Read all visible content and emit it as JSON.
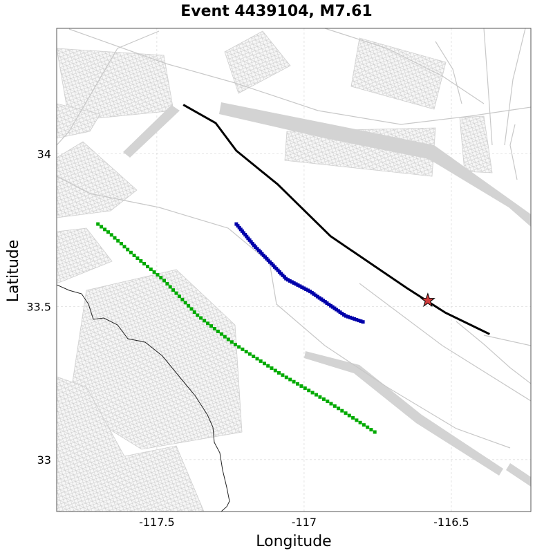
{
  "title": "Event 4439104, M7.61",
  "chart_data": {
    "type": "map",
    "xlabel": "Longitude",
    "ylabel": "Latitude",
    "xlim": [
      -117.84,
      -116.23
    ],
    "ylim": [
      32.83,
      34.41
    ],
    "x_ticks": [
      -117.5,
      -117,
      -116.5
    ],
    "y_ticks": [
      33,
      33.5,
      34
    ],
    "x_tick_labels": [
      "-117.5",
      "-117",
      "-116.5"
    ],
    "y_tick_labels": [
      "33",
      "33.5",
      "34"
    ],
    "grid": true,
    "series": [
      {
        "kind": "rupture-trace",
        "color": "#000000",
        "points": [
          [
            -117.41,
            34.16
          ],
          [
            -117.3,
            34.1
          ],
          [
            -117.23,
            34.01
          ],
          [
            -117.09,
            33.9
          ],
          [
            -116.91,
            33.73
          ],
          [
            -116.65,
            33.56
          ],
          [
            -116.52,
            33.48
          ],
          [
            -116.37,
            33.41
          ]
        ]
      },
      {
        "kind": "marker-series",
        "color": "#0000aa",
        "points": [
          [
            -117.23,
            33.77
          ],
          [
            -117.17,
            33.7
          ],
          [
            -117.1,
            33.63
          ],
          [
            -117.06,
            33.59
          ],
          [
            -116.98,
            33.55
          ],
          [
            -116.92,
            33.51
          ],
          [
            -116.86,
            33.47
          ],
          [
            -116.8,
            33.45
          ]
        ]
      },
      {
        "kind": "marker-series",
        "color": "#00aa00",
        "points": [
          [
            -117.7,
            33.77
          ],
          [
            -117.66,
            33.74
          ],
          [
            -117.58,
            33.67
          ],
          [
            -117.48,
            33.59
          ],
          [
            -117.36,
            33.47
          ],
          [
            -117.24,
            33.38
          ],
          [
            -117.08,
            33.28
          ],
          [
            -116.92,
            33.19
          ],
          [
            -116.76,
            33.09
          ]
        ]
      }
    ],
    "epicenter": {
      "lon": -116.58,
      "lat": 33.52,
      "fill": "#d23c3c",
      "icon": "star-icon"
    },
    "background_color": "#d3d3d3",
    "coastline_color": "#222222"
  }
}
